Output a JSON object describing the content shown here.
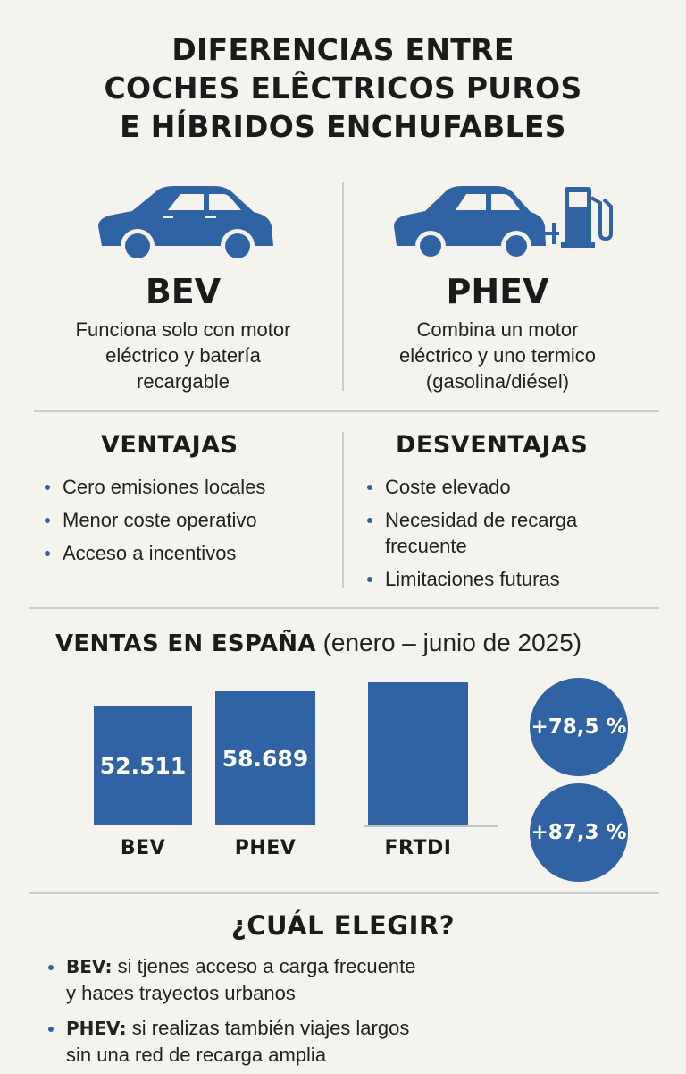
{
  "title": {
    "line1": "DIFERENCIAS ENTRE",
    "line2": "COCHES ELÊCTRICOS PUROS",
    "line3": "E HÍBRIDOS ENCHUFABLES"
  },
  "types": [
    {
      "label": "BEV",
      "desc1": "Funciona solo con motor",
      "desc2": "eléctrico y batería",
      "desc3": "recargable",
      "icon": "electric-car-icon"
    },
    {
      "label": "PHEV",
      "desc1": "Combina un motor",
      "desc2": "eléctrico y uno termico",
      "desc3": "(gasolina/diésel)",
      "icon": "hybrid-car-fuel-pump-icon"
    }
  ],
  "colors": {
    "accent": "#2f63a3",
    "background": "#f5f3ee"
  },
  "pros": {
    "title": "VENTAJAS",
    "items": [
      "Cero emisiones locales",
      "Menor coste operativo",
      "Acceso a incentivos"
    ]
  },
  "cons": {
    "title": "DESVENTAJAS",
    "items": [
      "Coste elevado",
      "Necesidad de recarga",
      "frecuente",
      "Limitaciones futuras"
    ]
  },
  "sales": {
    "title_bold": "VENTAS EN ESPAÑA",
    "title_light": "(enero – junio de 2025)",
    "badges": [
      "+78,5 %",
      "+87,3 %"
    ]
  },
  "chart_data": {
    "type": "bar",
    "categories": [
      "BEV",
      "PHEV",
      "FRTDI"
    ],
    "values": [
      52511,
      58689,
      null
    ],
    "value_labels": [
      "52.511",
      "58.689",
      ""
    ],
    "title": "",
    "xlabel": "",
    "ylabel": "",
    "grid": false
  },
  "choose": {
    "title": "¿CUÁL ELEGIR?",
    "items": [
      {
        "key": "BEV:",
        "line1": "si tjenes acceso a carga frecuente",
        "line2": "y haces trayectos urbanos"
      },
      {
        "key": "PHEV:",
        "line1": "si realizas también viajes largos",
        "line2": "sin una red de recarga amplia"
      }
    ]
  }
}
